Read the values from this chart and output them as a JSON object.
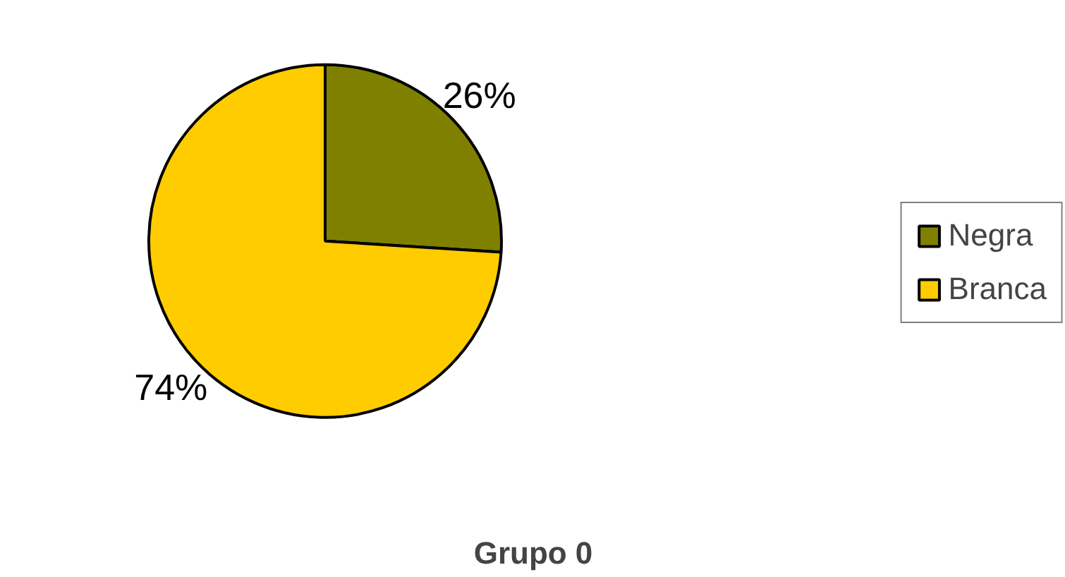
{
  "chart_data": {
    "type": "pie",
    "title": "Grupo 0",
    "categories": [
      "Negra",
      "Branca"
    ],
    "values": [
      26,
      74
    ],
    "colors": [
      "#808000",
      "#ffcc00"
    ],
    "value_labels": [
      "26%",
      "74%"
    ],
    "legend": "right"
  }
}
